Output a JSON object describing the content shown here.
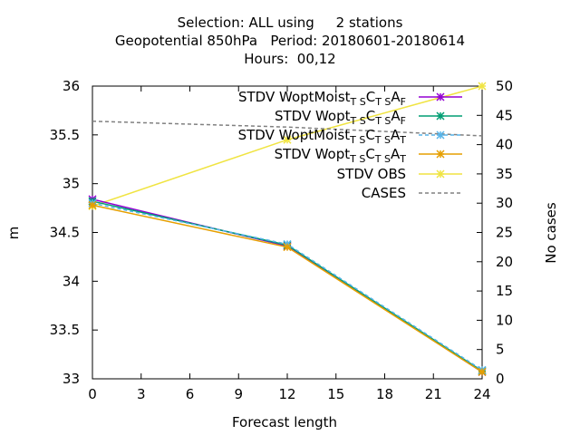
{
  "title": {
    "line1": "Selection: ALL using     2 stations",
    "line2": "Geopotential 850hPa   Period: 20180601-20180614",
    "line3": "Hours:  00,12"
  },
  "chart_data": {
    "type": "line",
    "xlabel": "Forecast length",
    "ylabel": "m",
    "y2label": "No cases",
    "xlim": [
      0,
      24
    ],
    "ylim": [
      33,
      36
    ],
    "y2lim": [
      0,
      50
    ],
    "xticks": [
      0,
      3,
      6,
      9,
      12,
      15,
      18,
      21,
      24
    ],
    "yticks": [
      33,
      33.5,
      34,
      34.5,
      35,
      35.5,
      36
    ],
    "y2ticks": [
      0,
      5,
      10,
      15,
      20,
      25,
      30,
      35,
      40,
      45,
      50
    ],
    "grid": false,
    "legend_position": "top-right",
    "series": [
      {
        "name": "STDV WoptMoist",
        "sub1": "T S",
        "mid": "C",
        "sub2": "T S",
        "end": "A",
        "sub3": "F",
        "color": "#9400d3",
        "axis": "y1",
        "marker": "x",
        "dash": false,
        "x": [
          0,
          12,
          24
        ],
        "y": [
          34.84,
          34.36,
          33.07
        ]
      },
      {
        "name": "STDV Wopt",
        "sub1": "T S",
        "mid": "C",
        "sub2": "T S",
        "end": "A",
        "sub3": "F",
        "color": "#009e73",
        "axis": "y1",
        "marker": "x",
        "dash": false,
        "x": [
          0,
          12,
          24
        ],
        "y": [
          34.82,
          34.37,
          33.08
        ]
      },
      {
        "name": "STDV WoptMoist",
        "sub1": "T S",
        "mid": "C",
        "sub2": "T S",
        "end": "A",
        "sub3": "T",
        "color": "#56b4e9",
        "axis": "y1",
        "marker": "x",
        "dash": true,
        "x": [
          0,
          12,
          24
        ],
        "y": [
          34.8,
          34.38,
          33.09
        ]
      },
      {
        "name": "STDV Wopt",
        "sub1": "T S",
        "mid": "C",
        "sub2": "T S",
        "end": "A",
        "sub3": "T",
        "color": "#e69f00",
        "axis": "y1",
        "marker": "x",
        "dash": false,
        "x": [
          0,
          12,
          24
        ],
        "y": [
          34.78,
          34.35,
          33.07
        ]
      },
      {
        "name": "STDV OBS",
        "color": "#f0e442",
        "axis": "y1",
        "marker": "x",
        "dash": false,
        "x": [
          0,
          12,
          24
        ],
        "y": [
          34.77,
          35.45,
          36.0
        ]
      },
      {
        "name": "CASES",
        "color": "#808080",
        "axis": "y2",
        "marker": "none",
        "dash": true,
        "x": [
          0,
          12,
          24
        ],
        "y": [
          44,
          43,
          41.5
        ]
      }
    ]
  }
}
